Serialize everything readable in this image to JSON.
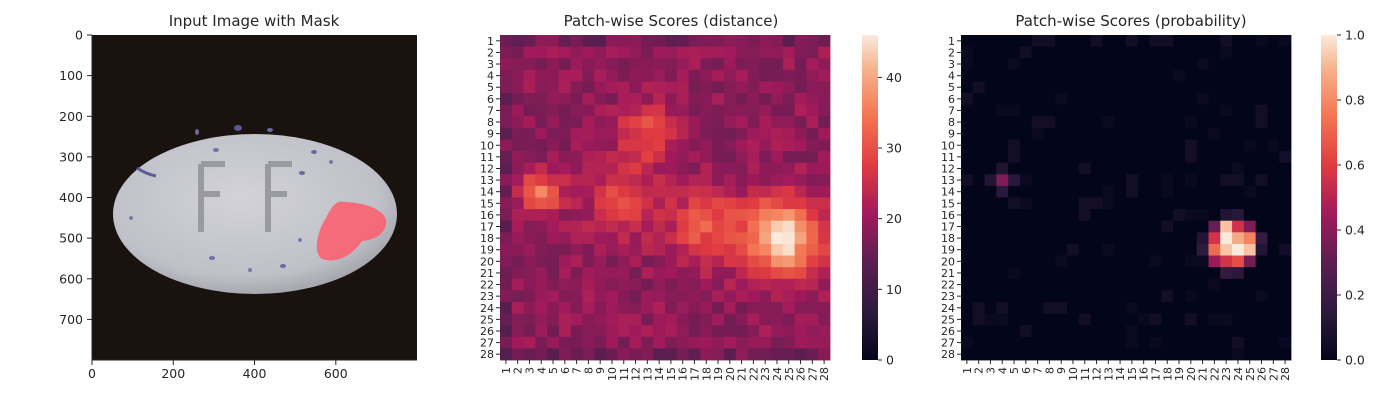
{
  "chart_data": [
    {
      "type": "image",
      "title": "Input Image with Mask",
      "xticks": [
        "0",
        "200",
        "400",
        "600"
      ],
      "yticks": [
        "0",
        "100",
        "200",
        "300",
        "400",
        "500",
        "600",
        "700"
      ],
      "xlim": [
        0,
        800
      ],
      "ylim": [
        800,
        0
      ],
      "content": "pill photo with red mask overlay",
      "mask_color": "#ff5c6c"
    },
    {
      "type": "heatmap",
      "title": "Patch-wise Scores (distance)",
      "rows": 28,
      "cols": 28,
      "row_labels": [
        "1",
        "2",
        "3",
        "4",
        "5",
        "6",
        "7",
        "8",
        "9",
        "10",
        "11",
        "12",
        "13",
        "14",
        "15",
        "16",
        "17",
        "18",
        "19",
        "20",
        "21",
        "22",
        "23",
        "24",
        "25",
        "26",
        "27",
        "28"
      ],
      "col_labels": [
        "1",
        "2",
        "3",
        "4",
        "5",
        "6",
        "7",
        "8",
        "9",
        "10",
        "11",
        "12",
        "13",
        "14",
        "15",
        "16",
        "17",
        "18",
        "19",
        "20",
        "21",
        "22",
        "23",
        "24",
        "25",
        "26",
        "27",
        "28"
      ],
      "colorbar_ticks": [
        "0",
        "10",
        "20",
        "30",
        "40"
      ],
      "vmin": 0,
      "vmax": 46,
      "background_level": 19,
      "hotspots": [
        {
          "row": 18,
          "col": 24.5,
          "peak": 45,
          "spread": 3.2
        },
        {
          "row": 14,
          "col": 4,
          "peak": 34,
          "spread": 1.8
        },
        {
          "row": 9,
          "col": 13,
          "peak": 30,
          "spread": 2.5
        },
        {
          "row": 15,
          "col": 11,
          "peak": 29,
          "spread": 3.0
        },
        {
          "row": 17,
          "col": 18,
          "peak": 31,
          "spread": 3.0
        }
      ]
    },
    {
      "type": "heatmap",
      "title": "Patch-wise Scores (probability)",
      "rows": 28,
      "cols": 28,
      "row_labels": [
        "1",
        "2",
        "3",
        "4",
        "5",
        "6",
        "7",
        "8",
        "9",
        "10",
        "11",
        "12",
        "13",
        "14",
        "15",
        "16",
        "17",
        "18",
        "19",
        "20",
        "21",
        "22",
        "23",
        "24",
        "25",
        "26",
        "27",
        "28"
      ],
      "col_labels": [
        "1",
        "2",
        "3",
        "4",
        "5",
        "6",
        "7",
        "8",
        "9",
        "10",
        "11",
        "12",
        "13",
        "14",
        "15",
        "16",
        "17",
        "18",
        "19",
        "20",
        "21",
        "22",
        "23",
        "24",
        "25",
        "26",
        "27",
        "28"
      ],
      "colorbar_ticks": [
        "0.0",
        "0.2",
        "0.4",
        "0.6",
        "0.8",
        "1.0"
      ],
      "vmin": 0,
      "vmax": 1,
      "background_level": 0,
      "hotspots": [
        {
          "row": 18.5,
          "col": 23.5,
          "peak": 1.0,
          "spread": 1.9
        },
        {
          "row": 13,
          "col": 4,
          "peak": 0.3,
          "spread": 0.9
        }
      ]
    }
  ]
}
